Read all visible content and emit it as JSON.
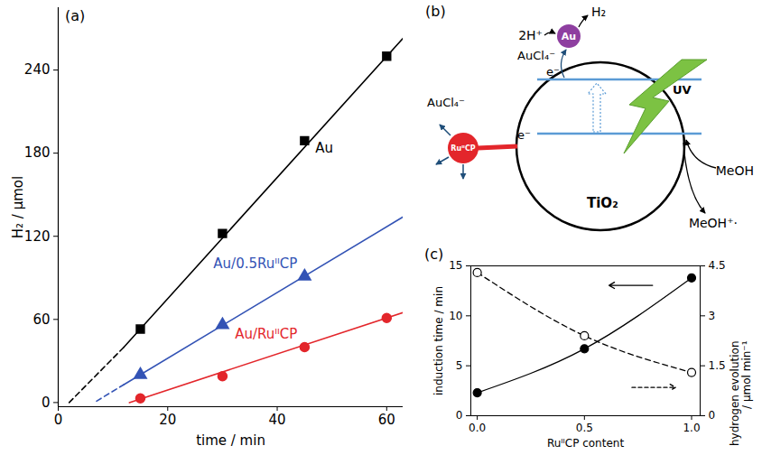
{
  "chart_data": [
    {
      "type": "line",
      "title": "(a)",
      "x_label": "time / min",
      "y_label": "H₂ / μmol",
      "xlim": [
        0,
        63
      ],
      "ylim": [
        -3,
        285
      ],
      "xticks": [
        0,
        20,
        40,
        60
      ],
      "yticks": [
        0,
        60,
        120,
        180,
        240
      ],
      "series": [
        {
          "name": "Au",
          "color": "#000000",
          "marker": "square",
          "x": [
            15,
            30,
            45,
            60
          ],
          "values": [
            53,
            122,
            189,
            250
          ],
          "fit": {
            "line_style": "solid",
            "x": [
              12,
              63
            ],
            "values": [
              40,
              263
            ]
          },
          "extrapolation": {
            "line_style": "dashed",
            "x": [
              2,
              12
            ],
            "values": [
              0,
              40
            ]
          }
        },
        {
          "name": "Au/0.5RuᴵᴵCP",
          "color": "#3353b5",
          "marker": "triangle",
          "x": [
            15,
            30,
            45
          ],
          "values": [
            20,
            56,
            91
          ],
          "fit": {
            "line_style": "solid",
            "x": [
              12,
              63
            ],
            "values": [
              13,
              134
            ]
          },
          "extrapolation": {
            "line_style": "dashed",
            "x": [
              7,
              12
            ],
            "values": [
              1,
              13
            ]
          }
        },
        {
          "name": "Au/RuᴵᴵCP",
          "color": "#e3262b",
          "marker": "circle",
          "x": [
            15,
            30,
            45,
            60
          ],
          "values": [
            3,
            19,
            40,
            61
          ],
          "fit": {
            "line_style": "solid",
            "x": [
              13,
              63
            ],
            "values": [
              0,
              65
            ]
          }
        }
      ]
    },
    {
      "type": "line",
      "title": "(c)",
      "x_label": "RuᴵᴵCP content",
      "y_label": "induction time / min",
      "y2_label": "hydrogen evolution / μmol min⁻¹",
      "xlim": [
        -0.03,
        1.04
      ],
      "ylim": [
        0,
        15
      ],
      "y2lim": [
        0,
        4.5
      ],
      "xticks": [
        0,
        0.5,
        1
      ],
      "yticks": [
        0,
        5,
        10,
        15
      ],
      "y2ticks": [
        0,
        1.5,
        3,
        4.5
      ],
      "series": [
        {
          "color": "#000000",
          "marker": "circle",
          "line_style": "solid",
          "x": [
            0,
            0.5,
            1
          ],
          "values": [
            2.3,
            6.7,
            13.8
          ]
        },
        {
          "color": "#000000",
          "marker": "open circle",
          "line_style": "dashed",
          "axis": "y2",
          "x": [
            0,
            0.5,
            1
          ],
          "values": [
            4.3,
            2.4,
            1.3
          ]
        }
      ]
    }
  ],
  "diagram": {
    "title": "(b)",
    "labels": {
      "h2": "H₂",
      "protons": "2H⁺",
      "au": "Au",
      "aucl4_top": "AuCl₄⁻",
      "aucl4_left": "AuCl₄⁻",
      "ru": "RuᴵᴵCP",
      "e_cb": "e⁻",
      "e_vb": "e⁻",
      "uv": "UV",
      "tio2": "TiO₂",
      "meoh": "MeOH",
      "meoh_ox": "MeOH⁺·"
    }
  }
}
